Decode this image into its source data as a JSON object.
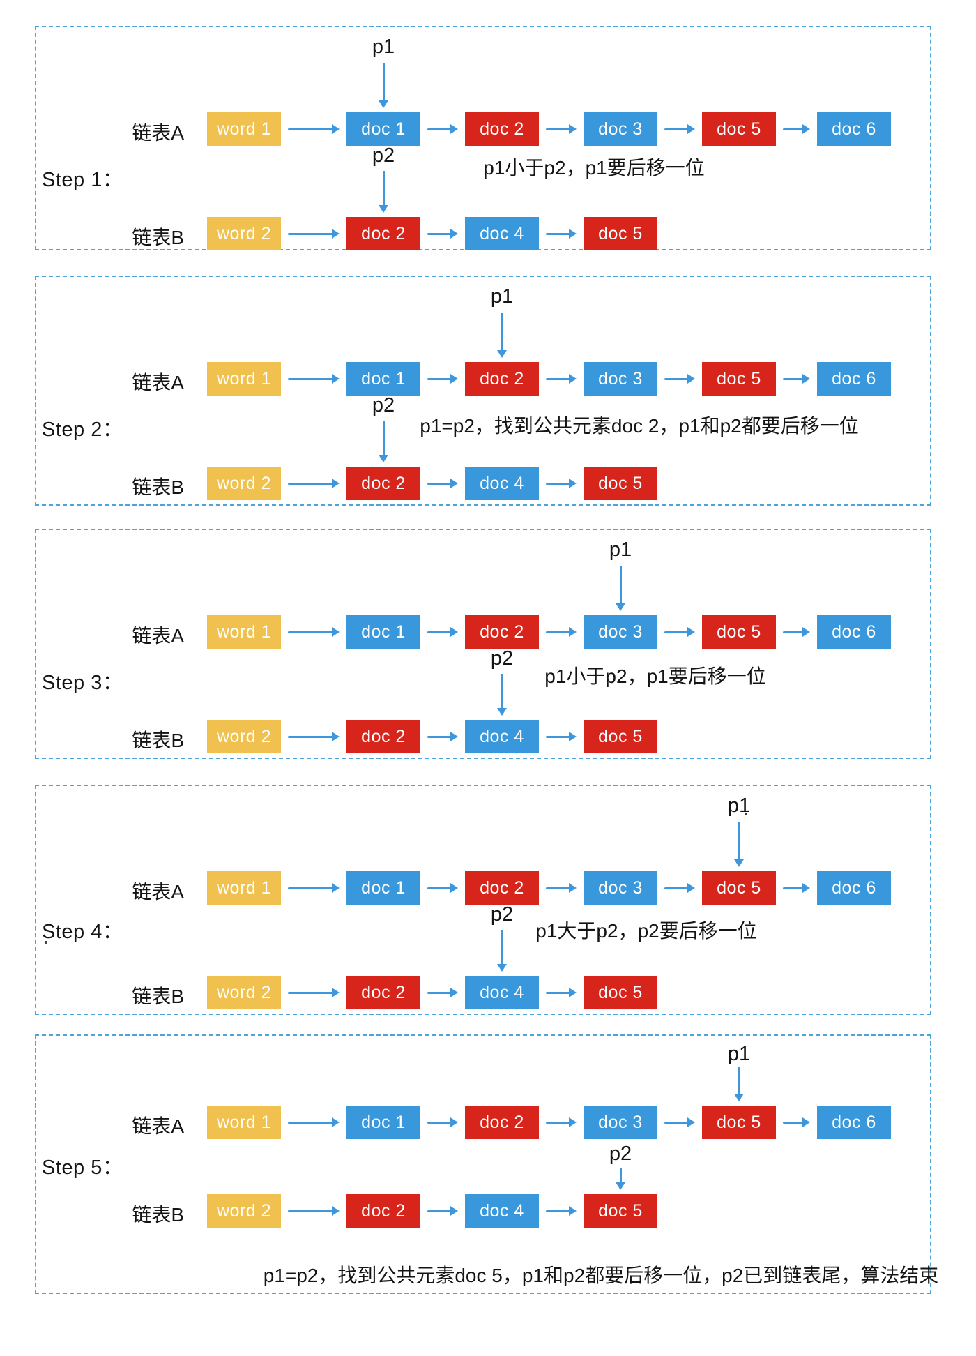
{
  "colors": {
    "yellow": "#F0C14E",
    "blue": "#3898DB",
    "red": "#D8251C",
    "arrow": "#3E97DC",
    "border": "#4DA3DB",
    "text": "#141414"
  },
  "list_a_label": "链表A",
  "list_b_label": "链表B",
  "list_a_nodes": [
    {
      "label": "word 1",
      "color": "yellow"
    },
    {
      "label": "doc 1",
      "color": "blue"
    },
    {
      "label": "doc 2",
      "color": "red"
    },
    {
      "label": "doc 3",
      "color": "blue"
    },
    {
      "label": "doc 5",
      "color": "red"
    },
    {
      "label": "doc 6",
      "color": "blue"
    }
  ],
  "list_b_nodes": [
    {
      "label": "word 2",
      "color": "yellow"
    },
    {
      "label": "doc 2",
      "color": "red"
    },
    {
      "label": "doc 4",
      "color": "blue"
    },
    {
      "label": "doc 5",
      "color": "red"
    }
  ],
  "panels": [
    {
      "step_label": "Step 1：",
      "p1_label": "p1",
      "p1_target": 1,
      "p2_label": "p2",
      "p2_target": 1,
      "desc": "p1小于p2，p1要后移一位"
    },
    {
      "step_label": "Step 2：",
      "p1_label": "p1",
      "p1_target": 2,
      "p2_label": "p2",
      "p2_target": 1,
      "desc": "p1=p2，找到公共元素doc 2，p1和p2都要后移一位"
    },
    {
      "step_label": "Step 3：",
      "p1_label": "p1",
      "p1_target": 3,
      "p2_label": "p2",
      "p2_target": 2,
      "desc": "p1小于p2，p1要后移一位"
    },
    {
      "step_label": "Step 4：",
      "p1_label": "p1",
      "p1_target": 4,
      "p2_label": "p2",
      "p2_target": 2,
      "desc": "p1大于p2，p2要后移一位"
    },
    {
      "step_label": "Step 5：",
      "p1_label": "p1",
      "p1_target": 4,
      "p2_label": "p2",
      "p2_target": 3,
      "desc": "p1=p2，找到公共元素doc 5，p1和p2都要后移一位，p2已到链表尾，算法结束"
    }
  ]
}
